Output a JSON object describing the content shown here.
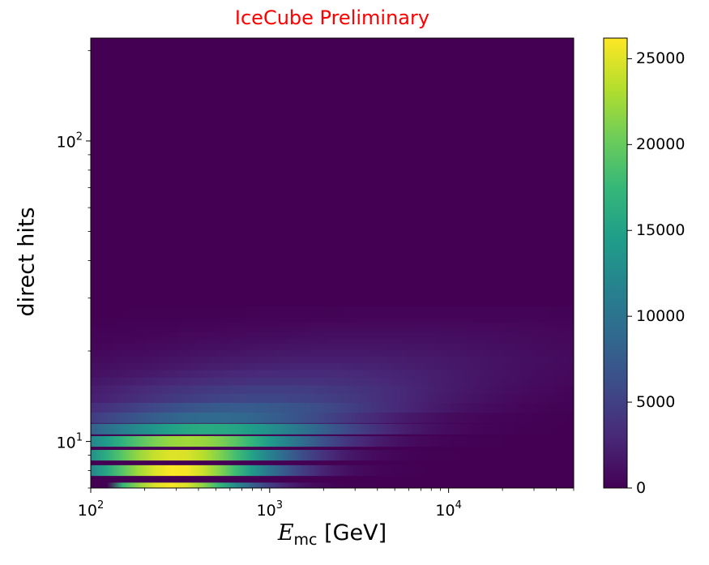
{
  "chart_data": {
    "type": "heatmap",
    "title": "IceCube Preliminary",
    "title_color": "#ff0000",
    "xlabel_symbol": "E",
    "xlabel_subscript": "mc",
    "xlabel_unit": "[GeV]",
    "ylabel": "direct hits",
    "xscale": "log",
    "yscale": "log",
    "xlim": [
      100,
      50000
    ],
    "ylim": [
      7,
      220
    ],
    "x_ticks": [
      {
        "value": 100,
        "base": "10",
        "exp": "2"
      },
      {
        "value": 1000,
        "base": "10",
        "exp": "3"
      },
      {
        "value": 10000,
        "base": "10",
        "exp": "4"
      }
    ],
    "y_ticks": [
      {
        "value": 10,
        "base": "10",
        "exp": "1"
      },
      {
        "value": 100,
        "base": "10",
        "exp": "2"
      }
    ],
    "colormap": "viridis",
    "colorbar": {
      "range": [
        0,
        26200
      ],
      "ticks": [
        0,
        5000,
        10000,
        15000,
        20000,
        25000
      ],
      "tick_labels": [
        "0",
        "5000",
        "10000",
        "15000",
        "20000",
        "25000"
      ]
    },
    "bands": [
      {
        "hits": 7,
        "peak": 26000,
        "peak_energy": 280,
        "width": 0.3,
        "x_start": 150
      },
      {
        "hits": 8,
        "peak": 26200,
        "peak_energy": 300,
        "width": 0.38
      },
      {
        "hits": 9,
        "peak": 25000,
        "peak_energy": 300,
        "width": 0.42
      },
      {
        "hits": 10,
        "peak": 22500,
        "peak_energy": 350,
        "width": 0.48
      },
      {
        "hits": 11,
        "peak": 16000,
        "peak_energy": 450,
        "width": 0.55
      },
      {
        "hits": 12,
        "peak": 9000,
        "peak_energy": 500,
        "width": 0.6
      },
      {
        "hits": 13,
        "peak": 7500,
        "peak_energy": 700,
        "width": 0.65
      },
      {
        "hits": 14,
        "peak": 5500,
        "peak_energy": 900,
        "width": 0.7
      },
      {
        "hits": 15,
        "peak": 4800,
        "peak_energy": 1000,
        "width": 0.75
      },
      {
        "hits": 16,
        "peak": 3800,
        "peak_energy": 1200,
        "width": 0.8
      },
      {
        "hits": 17,
        "peak": 3200,
        "peak_energy": 1500,
        "width": 0.82
      },
      {
        "hits": 18,
        "peak": 2600,
        "peak_energy": 1800,
        "width": 0.85
      },
      {
        "hits": 19,
        "peak": 2200,
        "peak_energy": 2200,
        "width": 0.9
      },
      {
        "hits": 20,
        "peak": 1800,
        "peak_energy": 2500,
        "width": 0.9
      },
      {
        "hits": 21,
        "peak": 1500,
        "peak_energy": 3000,
        "width": 0.9
      },
      {
        "hits": 22,
        "peak": 1200,
        "peak_energy": 3500,
        "width": 0.9
      },
      {
        "hits": 23,
        "peak": 1000,
        "peak_energy": 4000,
        "width": 0.9
      },
      {
        "hits": 24,
        "peak": 800,
        "peak_energy": 5000,
        "width": 0.9
      },
      {
        "hits": 25,
        "peak": 600,
        "peak_energy": 6000,
        "width": 0.9
      },
      {
        "hits": 26,
        "peak": 400,
        "peak_energy": 8000,
        "width": 0.9
      },
      {
        "hits": 27,
        "peak": 250,
        "peak_energy": 10000,
        "width": 0.9
      }
    ]
  }
}
